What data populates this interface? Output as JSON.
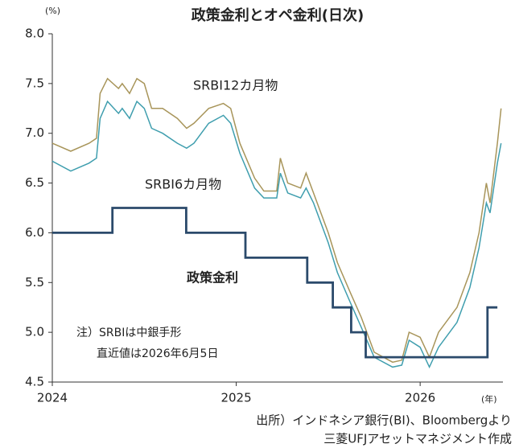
{
  "chart_data": {
    "type": "line",
    "title": "政策金利とオペ金利(日次)",
    "y_unit": "(%)",
    "x_unit": "(年)",
    "annotations": [
      "注）SRBIは中銀手形",
      "直近値は2026年6月5日"
    ],
    "source": [
      "出所）インドネシア銀行(BI)、Bloombergより",
      "三菱UFJアセットマネジメント作成"
    ],
    "xlim": [
      2024,
      2026.45
    ],
    "xticks": [
      2024,
      2025,
      2026
    ],
    "ylim": [
      4.5,
      8.0
    ],
    "yticks": [
      4.5,
      {
        "value": 5.0,
        "label": "5.0"
      },
      5.5,
      {
        "value": 6.0,
        "label": "6.0"
      },
      6.5,
      {
        "value": 7.0,
        "label": "7.0"
      },
      7.5,
      {
        "value": 8.0,
        "label": "8.0"
      }
    ],
    "grid": false,
    "series": [
      {
        "name": "SRBI12カ月物",
        "color": "#a8955a",
        "x": [
          2024,
          2024.1,
          2024.2,
          2024.24,
          2024.26,
          2024.3,
          2024.36,
          2024.38,
          2024.42,
          2024.46,
          2024.5,
          2024.54,
          2024.6,
          2024.68,
          2024.73,
          2024.77,
          2024.85,
          2024.93,
          2024.97,
          2025.02,
          2025.1,
          2025.15,
          2025.22,
          2025.24,
          2025.28,
          2025.35,
          2025.38,
          2025.42,
          2025.5,
          2025.55,
          2025.62,
          2025.68,
          2025.75,
          2025.85,
          2025.9,
          2025.94,
          2026.0,
          2026.05,
          2026.1,
          2026.2,
          2026.27,
          2026.32,
          2026.36,
          2026.38,
          2026.42,
          2026.44
        ],
        "values": [
          6.9,
          6.82,
          6.9,
          6.95,
          7.4,
          7.55,
          7.45,
          7.5,
          7.4,
          7.55,
          7.5,
          7.25,
          7.25,
          7.15,
          7.05,
          7.1,
          7.25,
          7.3,
          7.25,
          6.9,
          6.55,
          6.42,
          6.42,
          6.75,
          6.5,
          6.45,
          6.6,
          6.4,
          6.0,
          5.7,
          5.4,
          5.15,
          4.8,
          4.7,
          4.72,
          5.0,
          4.95,
          4.75,
          5.0,
          5.25,
          5.6,
          6.0,
          6.5,
          6.3,
          6.9,
          7.25
        ]
      },
      {
        "name": "SRBI6カ月物",
        "color": "#3f9eae",
        "x": [
          2024,
          2024.1,
          2024.2,
          2024.24,
          2024.26,
          2024.3,
          2024.36,
          2024.38,
          2024.42,
          2024.46,
          2024.5,
          2024.54,
          2024.6,
          2024.68,
          2024.73,
          2024.77,
          2024.85,
          2024.93,
          2024.97,
          2025.02,
          2025.1,
          2025.15,
          2025.22,
          2025.24,
          2025.28,
          2025.35,
          2025.38,
          2025.42,
          2025.5,
          2025.55,
          2025.62,
          2025.68,
          2025.75,
          2025.85,
          2025.9,
          2025.94,
          2026.0,
          2026.05,
          2026.1,
          2026.2,
          2026.27,
          2026.32,
          2026.36,
          2026.38,
          2026.42,
          2026.44
        ],
        "values": [
          6.72,
          6.62,
          6.7,
          6.75,
          7.15,
          7.32,
          7.2,
          7.25,
          7.15,
          7.32,
          7.25,
          7.05,
          7.0,
          6.9,
          6.85,
          6.9,
          7.1,
          7.18,
          7.1,
          6.8,
          6.45,
          6.35,
          6.35,
          6.6,
          6.4,
          6.35,
          6.45,
          6.3,
          5.9,
          5.6,
          5.3,
          5.05,
          4.75,
          4.65,
          4.67,
          4.92,
          4.85,
          4.65,
          4.85,
          5.1,
          5.45,
          5.85,
          6.3,
          6.2,
          6.7,
          6.9
        ]
      },
      {
        "name": "政策金利",
        "color": "#2b4a6b",
        "x": [
          2024,
          2024.327,
          2024.327,
          2024.728,
          2024.728,
          2025.05,
          2025.05,
          2025.386,
          2025.386,
          2025.525,
          2025.525,
          2025.625,
          2025.625,
          2025.704,
          2025.704,
          2026.366,
          2026.366,
          2026.42
        ],
        "values": [
          6,
          6,
          6.25,
          6.25,
          6,
          6,
          5.75,
          5.75,
          5.5,
          5.5,
          5.25,
          5.25,
          5,
          5,
          4.75,
          4.75,
          5.25,
          5.25
        ]
      }
    ]
  }
}
